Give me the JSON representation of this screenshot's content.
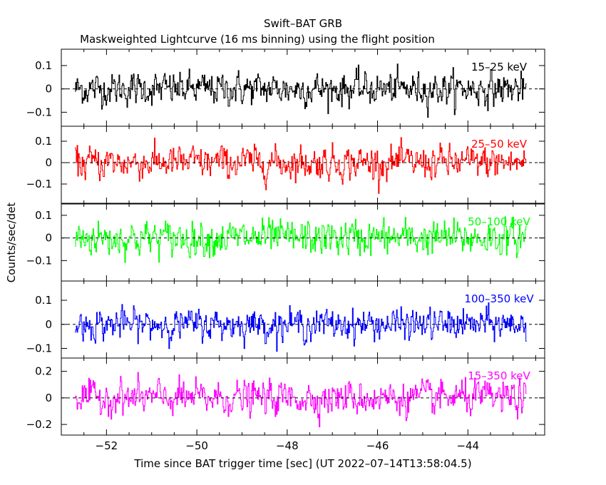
{
  "title": "Swift–BAT GRB",
  "subtitle": "Maskweighted Lightcurve (16 ms binning) using the flight position",
  "ylabel": "Counts/sec/det",
  "xlabel": "Time since BAT trigger time [sec] (UT 2022–07–14T13:58:04.5)",
  "chart_data": {
    "type": "line",
    "xlim": [
      -53.0,
      -42.3
    ],
    "xticks": [
      -52,
      -50,
      -48,
      -46,
      -44
    ],
    "xtick_labels": [
      "−52",
      "−50",
      "−48",
      "−46",
      "−44"
    ],
    "x_start": -52.7,
    "x_end": -42.7,
    "bin": 0.016,
    "panels": [
      {
        "band": "15–25 keV",
        "color": "#000000",
        "ylim": [
          -0.16,
          0.17
        ],
        "yticks": [
          0.1,
          0,
          -0.1
        ],
        "ytick_labels": [
          "0.1",
          "0",
          "−0.1"
        ],
        "noise_sd": 0.05
      },
      {
        "band": "25–50 keV",
        "color": "#ff0000",
        "ylim": [
          -0.19,
          0.17
        ],
        "yticks": [
          0.1,
          0,
          -0.1
        ],
        "ytick_labels": [
          "0.1",
          "0",
          "−0.1"
        ],
        "noise_sd": 0.055
      },
      {
        "band": "50–100 keV",
        "color": "#00ff00",
        "ylim": [
          -0.19,
          0.15
        ],
        "yticks": [
          0.1,
          0,
          -0.1
        ],
        "ytick_labels": [
          "0.1",
          "0",
          "−0.1"
        ],
        "noise_sd": 0.055
      },
      {
        "band": "100–350 keV",
        "color": "#0000ff",
        "ylim": [
          -0.14,
          0.18
        ],
        "yticks": [
          0.1,
          0,
          -0.1
        ],
        "ytick_labels": [
          "0.1",
          "0",
          "−0.1"
        ],
        "noise_sd": 0.045
      },
      {
        "band": "15–350 keV",
        "color": "#ff00ff",
        "ylim": [
          -0.28,
          0.3
        ],
        "yticks": [
          0.2,
          0,
          -0.2
        ],
        "ytick_labels": [
          "0.2",
          "0",
          "−0.2"
        ],
        "noise_sd": 0.09
      }
    ]
  }
}
